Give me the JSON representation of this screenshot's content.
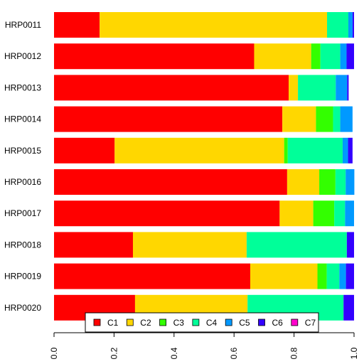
{
  "chart_data": {
    "type": "bar",
    "orientation": "horizontal",
    "stacked": true,
    "categories": [
      "HRP0011",
      "HRP0012",
      "HRP0013",
      "HRP0014",
      "HRP0015",
      "HRP0016",
      "HRP0017",
      "HRP0018",
      "HRP0019",
      "HRP0020"
    ],
    "series": [
      {
        "name": "C1",
        "color": "#FF0000",
        "values": [
          0.152,
          0.667,
          0.782,
          0.761,
          0.202,
          0.777,
          0.752,
          0.263,
          0.654,
          0.27
        ]
      },
      {
        "name": "C2",
        "color": "#FFD700",
        "values": [
          0.758,
          0.19,
          0.031,
          0.112,
          0.565,
          0.107,
          0.112,
          0.379,
          0.224,
          0.375
        ]
      },
      {
        "name": "C3",
        "color": "#33FF00",
        "values": [
          0.0,
          0.031,
          0.0,
          0.057,
          0.012,
          0.054,
          0.07,
          0.0,
          0.031,
          0.0
        ]
      },
      {
        "name": "C4",
        "color": "#00FF99",
        "values": [
          0.071,
          0.066,
          0.126,
          0.024,
          0.183,
          0.034,
          0.036,
          0.334,
          0.042,
          0.32
        ]
      },
      {
        "name": "C5",
        "color": "#0099FF",
        "values": [
          0.014,
          0.021,
          0.038,
          0.041,
          0.018,
          0.029,
          0.03,
          0.0,
          0.022,
          0.0
        ]
      },
      {
        "name": "C6",
        "color": "#3300FF",
        "values": [
          0.005,
          0.025,
          0.005,
          0.0,
          0.015,
          0.0,
          0.0,
          0.024,
          0.027,
          0.035
        ]
      },
      {
        "name": "C7",
        "color": "#FF00CC",
        "values": [
          0.0,
          0.0,
          0.0,
          0.0,
          0.0,
          0.0,
          0.0,
          0.0,
          0.0,
          0.0
        ]
      }
    ],
    "xlim": [
      0,
      1
    ],
    "xticks": [
      "0.0",
      "0.2",
      "0.4",
      "0.6",
      "0.8",
      "1.0"
    ],
    "legend_position": "bottom-center",
    "grid": false,
    "title": "",
    "xlabel": "",
    "ylabel": ""
  }
}
